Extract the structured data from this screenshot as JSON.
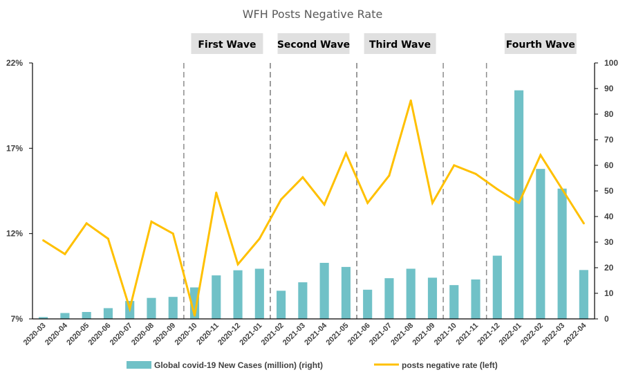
{
  "chart_data": {
    "type": "bar+line",
    "title": "WFH Posts Negative Rate",
    "categories": [
      "2020-03",
      "2020-04",
      "2020-05",
      "2020-06",
      "2020-07",
      "2020-08",
      "2020-09",
      "2020-10",
      "2020-11",
      "2020-12",
      "2021-01",
      "2021-02",
      "2021-03",
      "2021-04",
      "2021-05",
      "2021-06",
      "2021-07",
      "2021-08",
      "2021-09",
      "2021-10",
      "2021-11",
      "2021-12",
      "2022-01",
      "2022-02",
      "2022-03",
      "2022-04"
    ],
    "series": [
      {
        "name": "Global covid-19 New Cases (million) (right)",
        "type": "bar",
        "axis": "right",
        "color": "#70c1c7",
        "values": [
          0.7,
          2.3,
          2.7,
          4.2,
          7.0,
          8.2,
          8.6,
          12.3,
          17.0,
          19.0,
          19.6,
          11.0,
          14.3,
          21.9,
          20.3,
          11.4,
          15.9,
          19.6,
          16.1,
          13.2,
          15.4,
          24.7,
          89.3,
          58.6,
          50.9,
          19.1
        ]
      },
      {
        "name": "posts negative rate (left)",
        "type": "line",
        "axis": "left",
        "color": "#ffc000",
        "values": [
          11.6,
          10.8,
          12.6,
          11.7,
          7.6,
          12.7,
          12.0,
          7.2,
          14.4,
          10.2,
          11.7,
          14.0,
          15.3,
          13.7,
          16.7,
          13.8,
          15.4,
          19.8,
          13.8,
          16.0,
          15.5,
          14.6,
          13.8,
          16.6,
          14.6,
          12.6
        ]
      }
    ],
    "y_left": {
      "ticks": [
        "7%",
        "12%",
        "17%",
        "22%"
      ],
      "range": [
        7,
        22
      ]
    },
    "y_right": {
      "ticks": [
        "0",
        "10",
        "20",
        "30",
        "40",
        "50",
        "60",
        "70",
        "80",
        "90",
        "100"
      ],
      "range": [
        0,
        100
      ]
    },
    "waves": [
      {
        "label": "First Wave",
        "start": "2020-10",
        "end": "2021-01"
      },
      {
        "label": "Second Wave",
        "start": "2021-02",
        "end": "2021-05"
      },
      {
        "label": "Third Wave",
        "start": "2021-06",
        "end": "2021-09"
      },
      {
        "label": "Fourth Wave",
        "start": "2021-12",
        "end": "2022-04"
      }
    ],
    "legend": {
      "position": "bottom",
      "items": [
        "Global covid-19 New Cases (million) (right)",
        "posts negative rate (left)"
      ]
    },
    "grid": false
  }
}
